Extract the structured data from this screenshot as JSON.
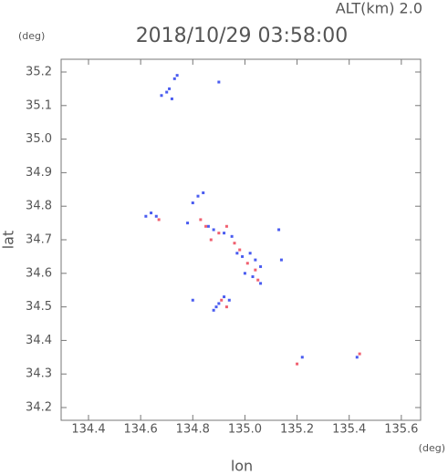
{
  "chart_data": {
    "type": "scatter",
    "title": "2018/10/29 03:58:00",
    "subtitle": "ALT(km) 2.0",
    "y_unit": "(deg)",
    "x_unit": "(deg)",
    "x_label": "lon",
    "y_label": "lat",
    "xlim": [
      134.295,
      135.674
    ],
    "ylim": [
      34.162,
      35.238
    ],
    "xticks": [
      134.4,
      134.6,
      134.8,
      {
        "value": 135.0,
        "label": "135.0"
      },
      135.2,
      135.4,
      135.6
    ],
    "yticks": [
      34.2,
      34.3,
      34.4,
      34.5,
      34.6,
      34.7,
      34.8,
      34.9,
      {
        "value": 35.0,
        "label": "35.0"
      },
      35.1,
      35.2
    ],
    "series": [
      {
        "color": "#4a5cf0",
        "x": [
          134.68,
          134.7,
          134.72,
          134.71,
          134.73,
          134.74,
          134.9,
          134.62,
          134.64,
          134.66,
          134.82,
          134.8,
          134.84,
          134.78,
          134.86,
          134.88,
          134.92,
          134.95,
          134.97,
          134.99,
          135.02,
          135.04,
          135.06,
          135.0,
          135.03,
          135.13,
          135.14,
          134.88,
          134.9,
          134.92,
          134.94,
          134.89,
          134.8,
          135.22,
          135.43,
          135.06
        ],
        "y": [
          35.13,
          35.14,
          35.12,
          35.15,
          35.18,
          35.19,
          35.17,
          34.77,
          34.78,
          34.77,
          34.83,
          34.81,
          34.84,
          34.75,
          34.74,
          34.73,
          34.72,
          34.71,
          34.66,
          34.65,
          34.66,
          34.64,
          34.62,
          34.6,
          34.59,
          34.73,
          34.64,
          34.49,
          34.51,
          34.53,
          34.52,
          34.5,
          34.52,
          34.35,
          34.35,
          34.57
        ]
      },
      {
        "color": "#f06070",
        "x": [
          134.67,
          134.83,
          134.85,
          134.87,
          134.9,
          134.93,
          134.96,
          135.01,
          135.04,
          135.05,
          134.91,
          134.93,
          135.2,
          135.44,
          134.98
        ],
        "y": [
          34.76,
          34.76,
          34.74,
          34.7,
          34.72,
          34.74,
          34.69,
          34.63,
          34.61,
          34.58,
          34.52,
          34.5,
          34.33,
          34.36,
          34.67
        ]
      }
    ]
  }
}
